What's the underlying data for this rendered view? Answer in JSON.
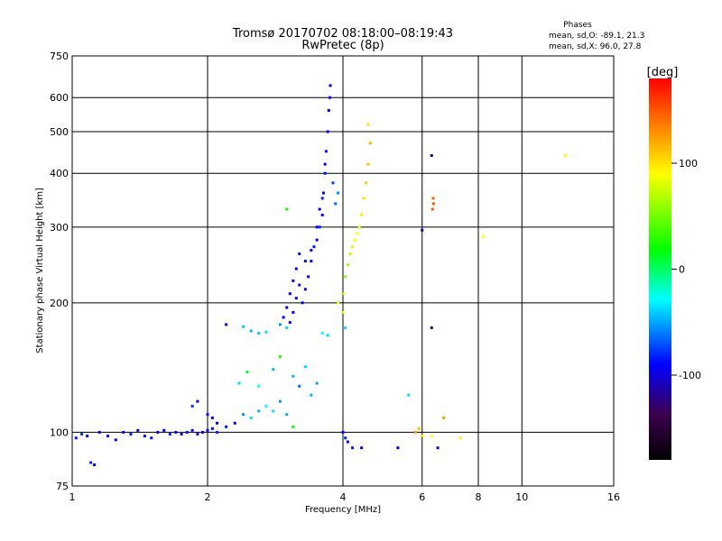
{
  "header": {
    "title": "Tromsø 20170702 08:18:00–08:19:43",
    "subtitle": "RwPretec (8p)"
  },
  "stats": {
    "label": "Phases",
    "line_o": "mean, sd,O: -89.1, 21.3",
    "line_x": "mean, sd,X:  96.0, 27.8"
  },
  "colorbar": {
    "unit_label": "[deg]",
    "ticks": [
      {
        "value": 100,
        "label": "100"
      },
      {
        "value": 0,
        "label": "0"
      },
      {
        "value": -100,
        "label": "-100"
      }
    ],
    "range": [
      -180,
      180
    ],
    "colors": [
      "#000000",
      "#3d0050",
      "#0000ff",
      "#00ffff",
      "#00ff00",
      "#ffff00",
      "#ff0000"
    ]
  },
  "chart_data": {
    "type": "scatter",
    "xlabel": "Frequency [MHz]",
    "ylabel": "Stationary phase Virtual Height [km]",
    "xscale": "log2",
    "yscale": "log",
    "xlim": [
      1,
      16
    ],
    "ylim": [
      75,
      750
    ],
    "grid": true,
    "x_ticks": [
      {
        "value": 1,
        "label": "1"
      },
      {
        "value": 2,
        "label": "2"
      },
      {
        "value": 4,
        "label": "4"
      },
      {
        "value": 6,
        "label": "6"
      },
      {
        "value": 8,
        "label": "8"
      },
      {
        "value": 10,
        "label": "10"
      },
      {
        "value": 16,
        "label": "16"
      }
    ],
    "y_ticks": [
      {
        "value": 75,
        "label": "75"
      },
      {
        "value": 100,
        "label": "100"
      },
      {
        "value": 200,
        "label": "200"
      },
      {
        "value": 300,
        "label": "300"
      },
      {
        "value": 400,
        "label": "400"
      },
      {
        "value": 500,
        "label": "500"
      },
      {
        "value": 600,
        "label": "600"
      },
      {
        "value": 750,
        "label": "750"
      }
    ],
    "series": [
      {
        "points": [
          [
            1.02,
            97,
            -95
          ],
          [
            1.05,
            99,
            -85
          ],
          [
            1.08,
            98,
            -100
          ],
          [
            1.1,
            85,
            -90
          ],
          [
            1.12,
            84,
            -100
          ],
          [
            1.15,
            100,
            -110
          ],
          [
            1.2,
            98,
            -95
          ],
          [
            1.25,
            96,
            -100
          ],
          [
            1.3,
            100,
            -105
          ],
          [
            1.35,
            99,
            -90
          ],
          [
            1.4,
            101,
            -110
          ],
          [
            1.45,
            98,
            -100
          ],
          [
            1.5,
            97,
            -95
          ],
          [
            1.55,
            100,
            -105
          ],
          [
            1.6,
            101,
            -100
          ],
          [
            1.65,
            99,
            -90
          ],
          [
            1.7,
            100,
            -100
          ],
          [
            1.75,
            99,
            -110
          ],
          [
            1.8,
            100,
            -95
          ],
          [
            1.85,
            101,
            -100
          ],
          [
            1.9,
            99,
            -100
          ],
          [
            1.95,
            100,
            -105
          ],
          [
            2.0,
            101,
            -95
          ],
          [
            2.05,
            102,
            -100
          ],
          [
            2.1,
            100,
            -90
          ],
          [
            1.85,
            115,
            -85
          ],
          [
            1.9,
            118,
            -100
          ],
          [
            2.0,
            110,
            -95
          ],
          [
            2.05,
            108,
            -110
          ],
          [
            2.1,
            105,
            -100
          ],
          [
            2.2,
            103,
            -95
          ],
          [
            2.3,
            105,
            -100
          ],
          [
            2.4,
            110,
            -60
          ],
          [
            2.5,
            108,
            -40
          ],
          [
            2.6,
            112,
            -50
          ],
          [
            2.7,
            115,
            -30
          ],
          [
            2.8,
            112,
            -40
          ],
          [
            2.9,
            118,
            -60
          ],
          [
            3.0,
            110,
            -50
          ],
          [
            3.1,
            103,
            20
          ],
          [
            2.35,
            130,
            -40
          ],
          [
            2.45,
            138,
            10
          ],
          [
            2.6,
            128,
            -30
          ],
          [
            2.8,
            140,
            -50
          ],
          [
            2.9,
            150,
            30
          ],
          [
            3.1,
            135,
            -50
          ],
          [
            3.2,
            128,
            -70
          ],
          [
            3.3,
            142,
            -40
          ],
          [
            3.4,
            122,
            -50
          ],
          [
            3.5,
            130,
            -55
          ],
          [
            2.2,
            178,
            -110
          ],
          [
            2.4,
            176,
            -40
          ],
          [
            2.5,
            172,
            -50
          ],
          [
            2.6,
            170,
            -45
          ],
          [
            2.7,
            171,
            -40
          ],
          [
            2.9,
            178,
            -60
          ],
          [
            3.0,
            175,
            -40
          ],
          [
            3.6,
            170,
            -30
          ],
          [
            3.7,
            168,
            -40
          ],
          [
            2.95,
            185,
            -100
          ],
          [
            3.0,
            195,
            -100
          ],
          [
            3.05,
            210,
            -105
          ],
          [
            3.1,
            225,
            -100
          ],
          [
            3.15,
            240,
            -100
          ],
          [
            3.2,
            260,
            -95
          ],
          [
            3.25,
            200,
            -100
          ],
          [
            3.3,
            215,
            -110
          ],
          [
            3.35,
            230,
            -100
          ],
          [
            3.4,
            250,
            -100
          ],
          [
            3.45,
            270,
            -95
          ],
          [
            3.5,
            280,
            -100
          ],
          [
            3.55,
            300,
            -90
          ],
          [
            3.6,
            320,
            -100
          ],
          [
            3.62,
            360,
            -100
          ],
          [
            3.65,
            400,
            -95
          ],
          [
            3.67,
            450,
            -100
          ],
          [
            3.7,
            500,
            -100
          ],
          [
            3.72,
            560,
            -100
          ],
          [
            3.74,
            600,
            -95
          ],
          [
            3.75,
            640,
            -100
          ],
          [
            3.8,
            380,
            -80
          ],
          [
            3.85,
            340,
            -70
          ],
          [
            3.9,
            360,
            -60
          ],
          [
            3.05,
            180,
            -110
          ],
          [
            3.1,
            190,
            -100
          ],
          [
            3.15,
            205,
            -100
          ],
          [
            3.2,
            220,
            -95
          ],
          [
            3.3,
            250,
            -100
          ],
          [
            3.4,
            265,
            -105
          ],
          [
            3.5,
            300,
            -100
          ],
          [
            3.55,
            330,
            -100
          ],
          [
            3.6,
            350,
            -90
          ],
          [
            3.65,
            420,
            -100
          ],
          [
            3.0,
            330,
            30
          ],
          [
            4.0,
            210,
            70
          ],
          [
            4.05,
            230,
            60
          ],
          [
            4.1,
            245,
            70
          ],
          [
            4.15,
            260,
            80
          ],
          [
            4.2,
            270,
            90
          ],
          [
            4.25,
            280,
            95
          ],
          [
            4.3,
            290,
            100
          ],
          [
            4.35,
            300,
            100
          ],
          [
            4.4,
            320,
            105
          ],
          [
            4.45,
            350,
            110
          ],
          [
            4.5,
            380,
            115
          ],
          [
            4.55,
            420,
            120
          ],
          [
            4.6,
            470,
            125
          ],
          [
            4.55,
            520,
            110
          ],
          [
            3.9,
            200,
            90
          ],
          [
            4.0,
            190,
            85
          ],
          [
            4.05,
            175,
            -40
          ],
          [
            4.0,
            100,
            -100
          ],
          [
            4.05,
            97,
            -90
          ],
          [
            4.1,
            95,
            -100
          ],
          [
            4.2,
            92,
            -95
          ],
          [
            4.4,
            92,
            -100
          ],
          [
            5.3,
            92,
            -100
          ],
          [
            5.8,
            100,
            130
          ],
          [
            6.0,
            98,
            110
          ],
          [
            5.9,
            102,
            120
          ],
          [
            5.6,
            122,
            -40
          ],
          [
            6.3,
            98,
            100
          ],
          [
            6.5,
            92,
            -100
          ],
          [
            6.7,
            108,
            130
          ],
          [
            6.3,
            440,
            -130
          ],
          [
            6.35,
            350,
            150
          ],
          [
            6.36,
            340,
            155
          ],
          [
            6.33,
            330,
            150
          ],
          [
            6.3,
            175,
            -130
          ],
          [
            6.0,
            295,
            -120
          ],
          [
            8.2,
            285,
            100
          ],
          [
            7.3,
            97,
            105
          ],
          [
            12.5,
            440,
            100
          ]
        ]
      }
    ]
  }
}
